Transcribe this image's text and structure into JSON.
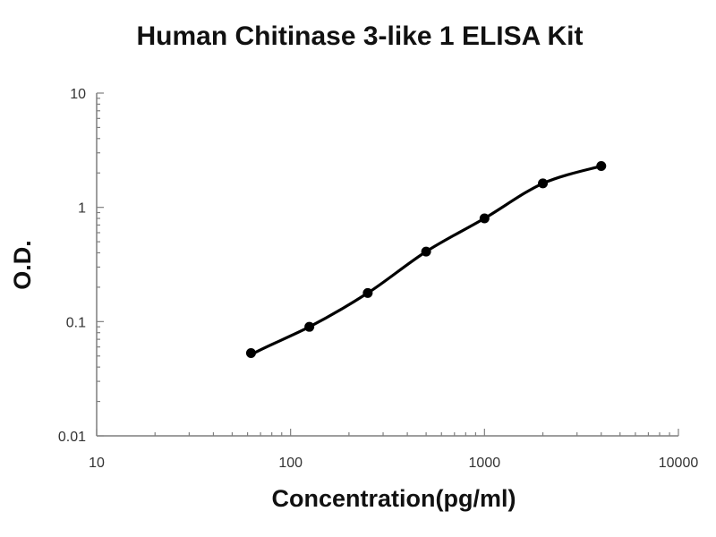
{
  "chart_data": {
    "type": "scatter",
    "title": "Human Chitinase 3-like 1 ELISA Kit",
    "xlabel": "Concentration(pg/ml)",
    "ylabel": "O.D.",
    "x_scale": "log",
    "y_scale": "log",
    "xlim": [
      10,
      10000
    ],
    "ylim": [
      0.01,
      10
    ],
    "x_ticks": [
      10,
      100,
      1000,
      10000
    ],
    "x_tick_labels": [
      "10",
      "100",
      "1000",
      "10000"
    ],
    "y_ticks": [
      0.01,
      0.1,
      1,
      10
    ],
    "y_tick_labels": [
      "0.01",
      "0.1",
      "1",
      "10"
    ],
    "grid": false,
    "legend": "none",
    "series": [
      {
        "x": [
          62.5,
          125,
          250,
          500,
          1000,
          2000,
          4000
        ],
        "y": [
          0.053,
          0.09,
          0.178,
          0.41,
          0.8,
          1.62,
          2.3
        ],
        "color": "#000000",
        "fit_line": true
      }
    ]
  }
}
